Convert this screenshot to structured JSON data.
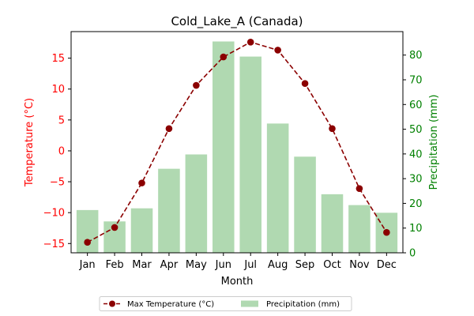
{
  "chart_data": {
    "type": "bar+line",
    "title": "Cold_Lake_A (Canada)",
    "xlabel": "Month",
    "categories": [
      "Jan",
      "Feb",
      "Mar",
      "Apr",
      "May",
      "Jun",
      "Jul",
      "Aug",
      "Sep",
      "Oct",
      "Nov",
      "Dec"
    ],
    "left_axis": {
      "label": "Temperature (°C)",
      "color": "#ff0000",
      "ylim": [
        -16.5,
        19.3
      ],
      "ticks": [
        -15,
        -10,
        -5,
        0,
        5,
        10,
        15
      ]
    },
    "right_axis": {
      "label": "Precipitation (mm)",
      "color": "#008000",
      "ylim": [
        0,
        89.5
      ],
      "ticks": [
        0,
        10,
        20,
        30,
        40,
        50,
        60,
        70,
        80
      ]
    },
    "series": [
      {
        "name": "Max Temperature (°C)",
        "kind": "line",
        "axis": "left",
        "color": "#8b0000",
        "line_style": "dashed",
        "marker": "circle",
        "values": [
          -14.8,
          -12.4,
          -5.2,
          3.6,
          10.6,
          15.2,
          17.6,
          16.3,
          10.9,
          3.6,
          -6.1,
          -13.2
        ]
      },
      {
        "name": "Precipitation (mm)",
        "kind": "bar",
        "axis": "right",
        "color": "#b0d9b1",
        "values": [
          17.3,
          12.7,
          18.0,
          34.0,
          39.8,
          85.5,
          79.4,
          52.3,
          38.9,
          23.7,
          19.3,
          16.2
        ]
      }
    ],
    "grid": false,
    "legend": {
      "placement": "bottom-center"
    }
  }
}
